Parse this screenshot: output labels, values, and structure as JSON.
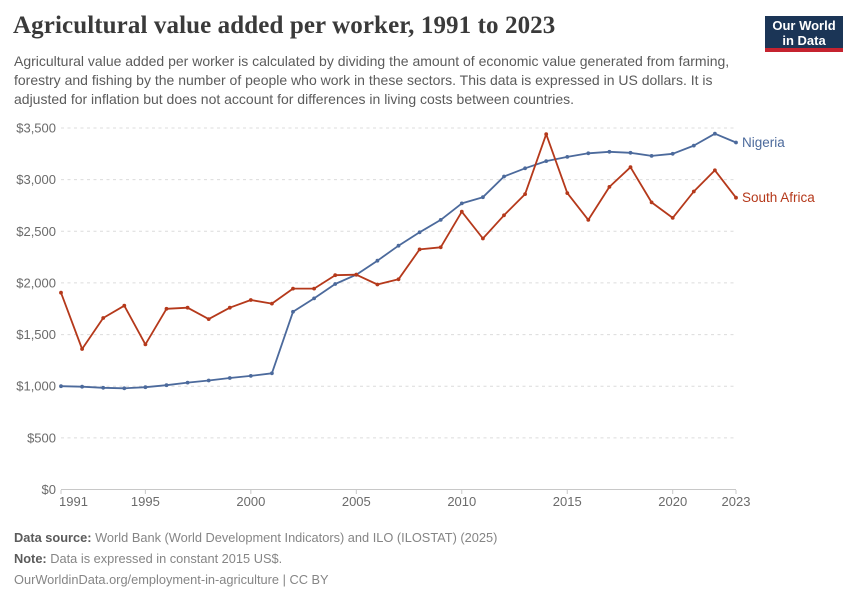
{
  "header": {
    "title": "Agricultural value added per worker, 1991 to 2023",
    "subtitle": "Agricultural value added per worker is calculated by dividing the amount of economic value generated from farming, forestry and fishing by the number of people who work in these sectors. This data is expressed in US dollars. It is adjusted for inflation but does not account for differences in living costs between countries.",
    "logo": {
      "line1": "Our World",
      "line2": "in Data"
    }
  },
  "chart_data": {
    "type": "line",
    "title": "Agricultural value added per worker, 1991 to 2023",
    "xlabel": "",
    "ylabel": "",
    "unit": "constant 2015 US$",
    "ylim": [
      0,
      3500
    ],
    "grid": "horizontal-dashed",
    "legend_position": "line-end-labels",
    "x": [
      1991,
      1992,
      1993,
      1994,
      1995,
      1996,
      1997,
      1998,
      1999,
      2000,
      2001,
      2002,
      2003,
      2004,
      2005,
      2006,
      2007,
      2008,
      2009,
      2010,
      2011,
      2012,
      2013,
      2014,
      2015,
      2016,
      2017,
      2018,
      2019,
      2020,
      2021,
      2022,
      2023
    ],
    "xticks": [
      1991,
      1995,
      2000,
      2005,
      2010,
      2015,
      2020,
      2023
    ],
    "yticks": [
      {
        "value": 0,
        "label": "$0"
      },
      {
        "value": 500,
        "label": "$500"
      },
      {
        "value": 1000,
        "label": "$1,000"
      },
      {
        "value": 1500,
        "label": "$1,500"
      },
      {
        "value": 2000,
        "label": "$2,000"
      },
      {
        "value": 2500,
        "label": "$2,500"
      },
      {
        "value": 3000,
        "label": "$3,000"
      },
      {
        "value": 3500,
        "label": "$3,500"
      }
    ],
    "series": [
      {
        "name": "Nigeria",
        "color": "#4c6a9c",
        "values": [
          1000,
          995,
          985,
          980,
          990,
          1010,
          1035,
          1055,
          1080,
          1100,
          1125,
          1720,
          1850,
          1990,
          2080,
          2215,
          2360,
          2490,
          2610,
          2770,
          2830,
          3030,
          3110,
          3180,
          3220,
          3255,
          3270,
          3260,
          3230,
          3250,
          3330,
          3445,
          3360
        ]
      },
      {
        "name": "South Africa",
        "color": "#b5391b",
        "values": [
          1905,
          1360,
          1660,
          1780,
          1405,
          1750,
          1760,
          1650,
          1760,
          1835,
          1800,
          1945,
          1945,
          2075,
          2080,
          1985,
          2035,
          2325,
          2345,
          2690,
          2430,
          2655,
          2860,
          3440,
          2870,
          2610,
          2930,
          3120,
          2780,
          2630,
          2885,
          3090,
          2825
        ]
      }
    ]
  },
  "footer": {
    "datasource_label": "Data source:",
    "datasource_text": " World Bank (World Development Indicators) and ILO (ILOSTAT) (2025)",
    "note_label": "Note:",
    "note_text": " Data is expressed in constant 2015 US$.",
    "url_line": "OurWorldinData.org/employment-in-agriculture | CC BY"
  },
  "colors": {
    "title": "#3a3a3a",
    "subtitle": "#5b5b5b",
    "axis_text": "#6b6b6b",
    "gridline": "#dcdcdc",
    "axis_line": "#c8c8c8",
    "logo_navy": "#1b3556",
    "logo_red": "#c5232f",
    "nigeria": "#4c6a9c",
    "south_africa": "#b5391b"
  }
}
